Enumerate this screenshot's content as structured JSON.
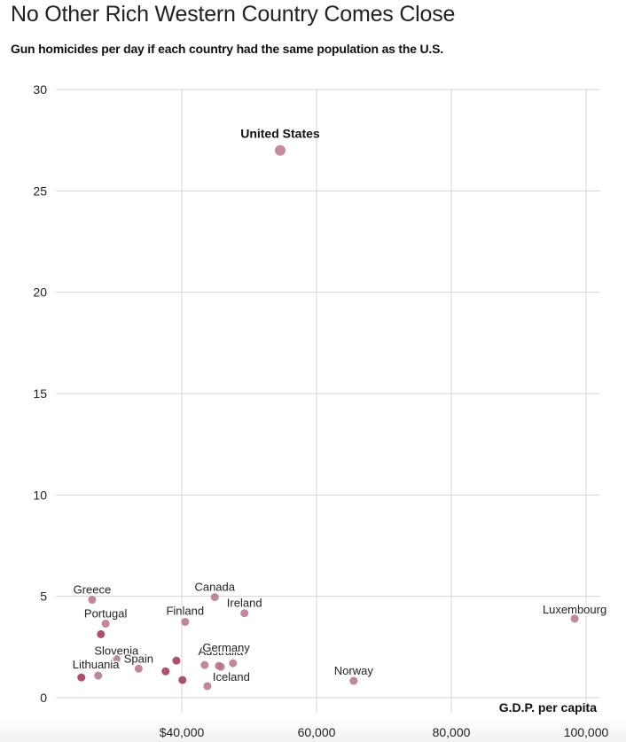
{
  "chart_data": {
    "type": "scatter",
    "title": "No Other Rich Western Country Comes Close",
    "subtitle": "Gun homicides per day if each country had the same population as the U.S.",
    "xlabel": "G.D.P. per capita",
    "ylabel": "",
    "xlim": [
      20000,
      100000
    ],
    "ylim": [
      0,
      30
    ],
    "x_ticks": [
      40000,
      60000,
      80000,
      100000
    ],
    "x_tick_labels": [
      "$40,000",
      "60,000",
      "80,000",
      "100,000"
    ],
    "y_ticks": [
      0,
      5,
      10,
      15,
      20,
      25,
      30
    ],
    "y_tick_labels": [
      "0",
      "5",
      "10",
      "15",
      "20",
      "25",
      "30"
    ],
    "grid": true,
    "colors": {
      "point": "#b5728a",
      "point_dark": "#a8476a",
      "highlight": "#b7778e",
      "grid": "#d4d4d4"
    },
    "points": [
      {
        "label": "United States",
        "x": 54600,
        "y": 27.0,
        "highlight": true
      },
      {
        "label": "Luxembourg",
        "x": 98300,
        "y": 3.9
      },
      {
        "label": "Norway",
        "x": 65500,
        "y": 0.83
      },
      {
        "label": "Canada",
        "x": 44900,
        "y": 4.96
      },
      {
        "label": "Ireland",
        "x": 49300,
        "y": 4.17
      },
      {
        "label": "Finland",
        "x": 40500,
        "y": 3.74
      },
      {
        "label": "Greece",
        "x": 26700,
        "y": 4.83
      },
      {
        "label": "Portugal",
        "x": 28700,
        "y": 3.65
      },
      {
        "label": "",
        "x": 28000,
        "y": 3.13,
        "dark": true
      },
      {
        "label": "Slovenia",
        "x": 30300,
        "y": 1.91
      },
      {
        "label": "Spain",
        "x": 33600,
        "y": 1.43
      },
      {
        "label": "Lithuania",
        "x": 25100,
        "y": 1.0,
        "dark": true
      },
      {
        "label": "",
        "x": 27600,
        "y": 1.09
      },
      {
        "label": "",
        "x": 39200,
        "y": 1.83,
        "dark": true
      },
      {
        "label": "",
        "x": 37600,
        "y": 1.3,
        "dark": true
      },
      {
        "label": "",
        "x": 40100,
        "y": 0.87,
        "dark": true
      },
      {
        "label": "Iceland",
        "x": 43800,
        "y": 0.57
      },
      {
        "label": "Australia",
        "x": 45500,
        "y": 1.57
      },
      {
        "label": "Germany",
        "x": 45800,
        "y": 1.52
      },
      {
        "label": "",
        "x": 43400,
        "y": 1.61
      },
      {
        "label": "",
        "x": 47600,
        "y": 1.7
      }
    ]
  }
}
